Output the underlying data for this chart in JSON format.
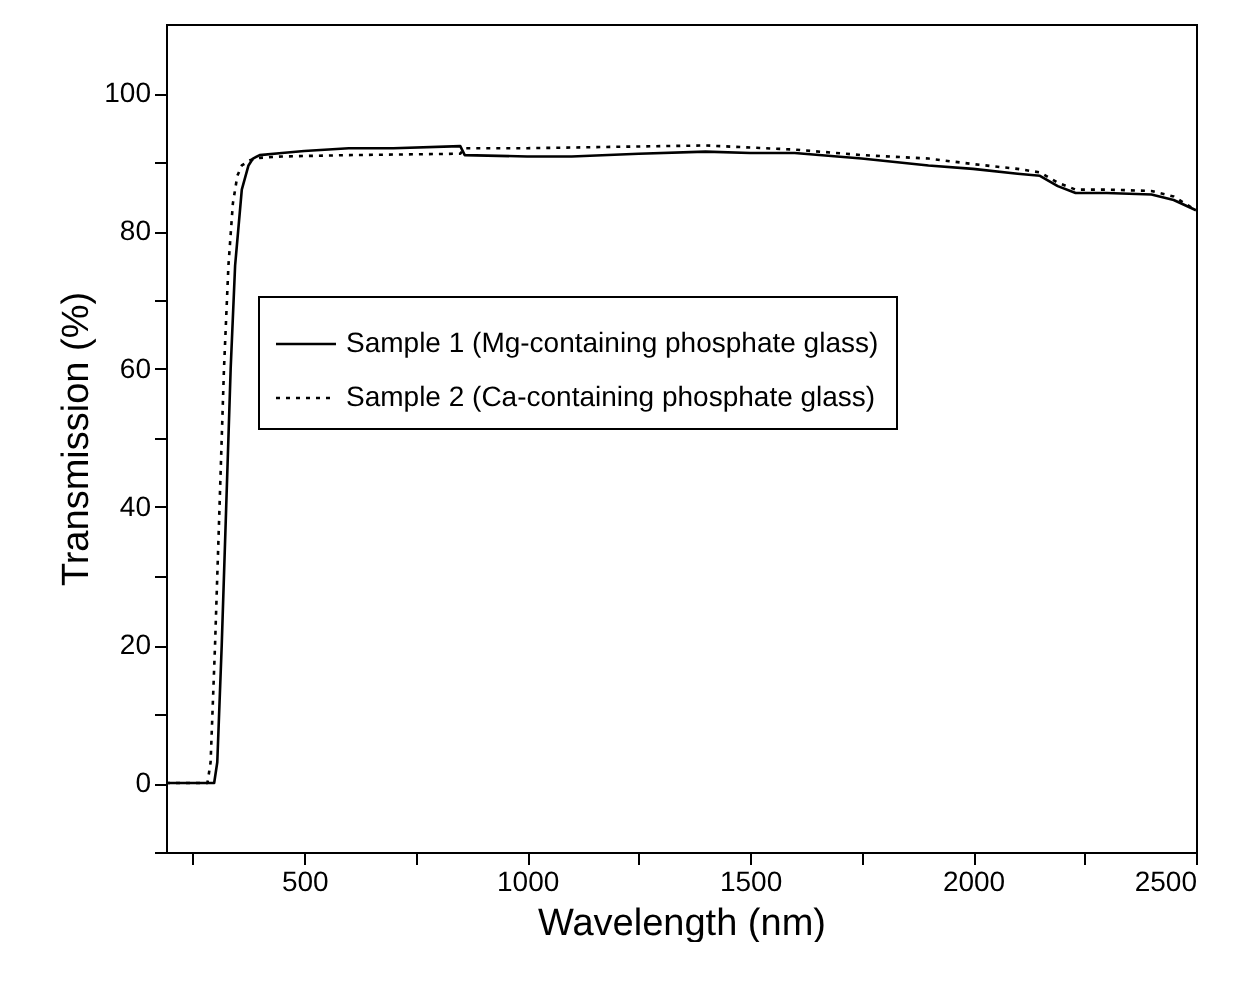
{
  "chart_data": {
    "type": "line",
    "xlabel": "Wavelength (nm)",
    "ylabel": "Transmission (%)",
    "xlim": [
      190,
      2500
    ],
    "ylim": [
      -10,
      110
    ],
    "xticks": [
      {
        "value": 250,
        "label": null
      },
      500,
      {
        "value": 750,
        "label": null
      },
      1000,
      {
        "value": 1250,
        "label": null
      },
      1500,
      {
        "value": 1750,
        "label": null
      },
      2000,
      {
        "value": 2250,
        "label": null
      },
      2500
    ],
    "yticks": [
      {
        "value": -10,
        "label": null
      },
      0,
      {
        "value": 10,
        "label": null
      },
      20,
      {
        "value": 30,
        "label": null
      },
      40,
      {
        "value": 50,
        "label": null
      },
      60,
      {
        "value": 70,
        "label": null
      },
      80,
      {
        "value": 90,
        "label": null
      },
      100
    ],
    "grid": false,
    "legend": "left",
    "marker": "none",
    "series": [
      {
        "name": "Sample 1 (Mg-containing phosphate glass)",
        "color": "#000000",
        "line_style": "solid",
        "x": [
          190,
          298,
          305,
          315,
          325,
          335,
          345,
          360,
          375,
          385,
          400,
          450,
          500,
          600,
          700,
          850,
          860,
          1000,
          1100,
          1250,
          1400,
          1500,
          1600,
          1750,
          1900,
          2000,
          2100,
          2150,
          2190,
          2230,
          2300,
          2400,
          2450,
          2500
        ],
        "values": [
          0,
          0,
          3,
          20,
          40,
          60,
          75,
          86,
          89.5,
          90.5,
          91,
          91.3,
          91.6,
          92,
          92,
          92.3,
          91,
          90.8,
          90.8,
          91.2,
          91.5,
          91.3,
          91.3,
          90.5,
          89.5,
          89,
          88.3,
          88,
          86.5,
          85.5,
          85.5,
          85.3,
          84.5,
          83
        ]
      },
      {
        "name": "Sample 2 (Ca-containing phosphate glass)",
        "color": "#000000",
        "line_style": "dotted",
        "x": [
          190,
          283,
          290,
          300,
          310,
          320,
          330,
          340,
          350,
          360,
          380,
          400,
          450,
          600,
          850,
          860,
          1000,
          1200,
          1400,
          1600,
          1750,
          1900,
          2000,
          2100,
          2150,
          2190,
          2230,
          2300,
          2400,
          2450,
          2500
        ],
        "values": [
          0,
          0,
          3,
          20,
          40,
          60,
          75,
          84,
          88,
          89.5,
          90.3,
          90.6,
          90.8,
          91,
          91.2,
          92,
          92,
          92.2,
          92.4,
          91.8,
          91,
          90.5,
          89.7,
          89,
          88.5,
          87,
          86,
          86,
          85.8,
          85,
          83
        ]
      }
    ]
  }
}
